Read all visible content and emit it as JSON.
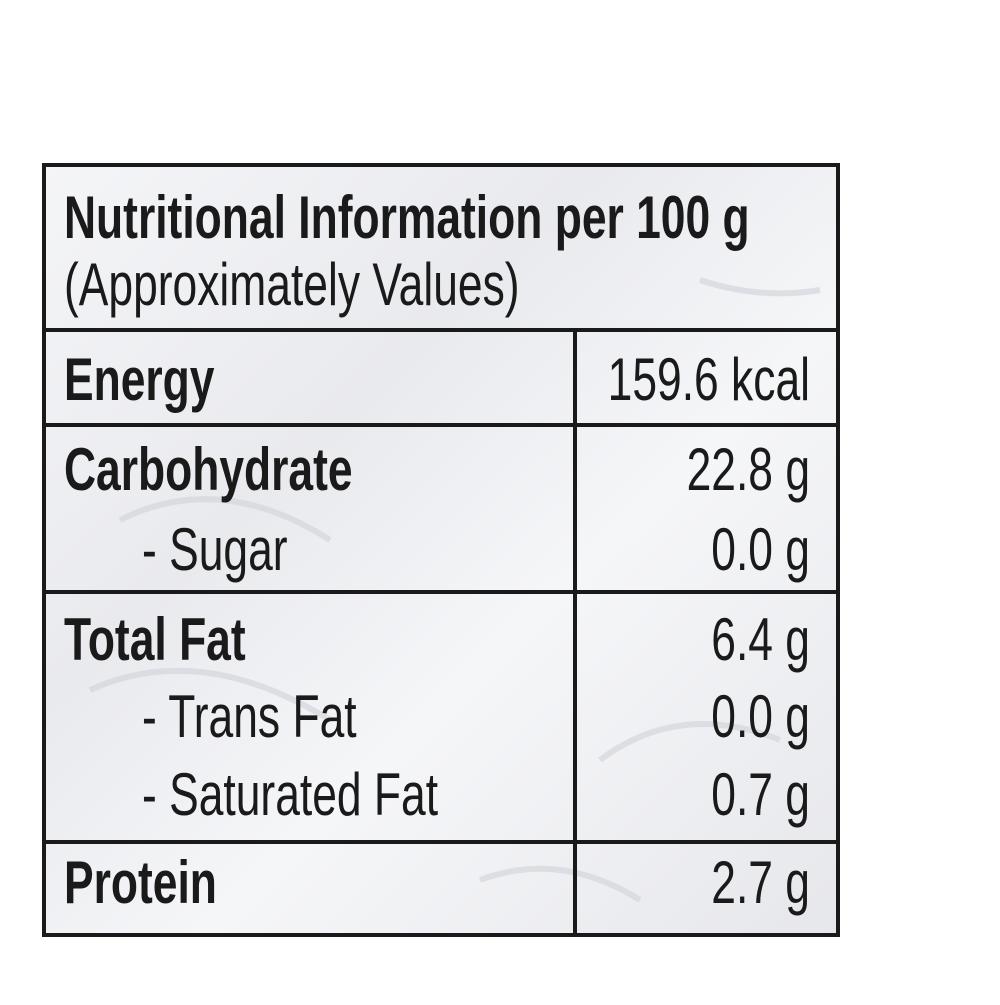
{
  "header": {
    "title": "Nutritional Information per 100 g",
    "subtitle": "(Approximately Values)"
  },
  "table": {
    "rows": [
      [
        "Energy",
        "159.6 kcal"
      ],
      [
        "Carbohydrate",
        "22.8 g"
      ],
      [
        "- Sugar",
        "0.0 g"
      ],
      [
        "Total Fat",
        "6.4 g"
      ],
      [
        "- Trans Fat",
        "0.0 g"
      ],
      [
        "- Saturated Fat",
        "0.7 g"
      ],
      [
        "Protein",
        "2.7 g"
      ]
    ]
  }
}
